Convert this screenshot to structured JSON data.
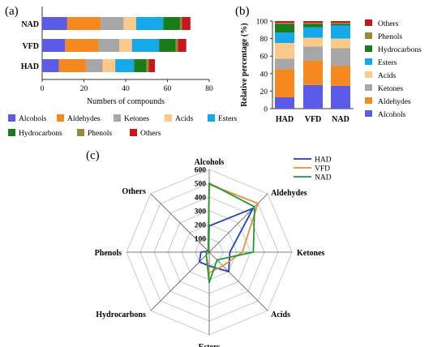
{
  "panel_labels": {
    "a": "(a)",
    "b": "(b)",
    "c": "(c)"
  },
  "colors": {
    "Alcohols": "#5b5be8",
    "Aldehydes": "#f5891f",
    "Ketones": "#a7a7a7",
    "Acids": "#fbc98a",
    "Esters": "#15a9ea",
    "Hydrocarbons": "#1a7b1a",
    "Phenols": "#968a3a",
    "Others": "#c8161d",
    "HAD_line": "#1c3fc8",
    "VFD_line": "#f08c3a",
    "NAD_line": "#1f9a2e"
  },
  "chart_data": [
    {
      "id": "a",
      "type": "bar",
      "orientation": "horizontal",
      "stacked": true,
      "categories": [
        "NAD",
        "VFD",
        "HAD"
      ],
      "series": [
        {
          "name": "Alcohols",
          "values": [
            12,
            11,
            8
          ]
        },
        {
          "name": "Aldehydes",
          "values": [
            16,
            16,
            13
          ]
        },
        {
          "name": "Ketones",
          "values": [
            11,
            10,
            8
          ]
        },
        {
          "name": "Acids",
          "values": [
            6,
            6,
            6
          ]
        },
        {
          "name": "Esters",
          "values": [
            13,
            13,
            9
          ]
        },
        {
          "name": "Hydrocarbons",
          "values": [
            8,
            8,
            6
          ]
        },
        {
          "name": "Phenols",
          "values": [
            1,
            1,
            1
          ]
        },
        {
          "name": "Others",
          "values": [
            4,
            4,
            3
          ]
        }
      ],
      "xlabel": "Numbers of compounds",
      "xlim": [
        0,
        80
      ],
      "xticks": [
        0,
        20,
        40,
        60,
        80
      ],
      "legend_placement": "bottom"
    },
    {
      "id": "b",
      "type": "bar",
      "stacked": true,
      "categories": [
        "HAD",
        "VFD",
        "NAD"
      ],
      "series": [
        {
          "name": "Alcohols",
          "values": [
            13,
            27,
            26
          ]
        },
        {
          "name": "Aldehydes",
          "values": [
            32,
            28,
            23
          ]
        },
        {
          "name": "Ketones",
          "values": [
            12,
            16,
            20
          ]
        },
        {
          "name": "Acids",
          "values": [
            18,
            10,
            11
          ]
        },
        {
          "name": "Esters",
          "values": [
            12,
            12,
            15
          ]
        },
        {
          "name": "Hydrocarbons",
          "values": [
            10,
            4,
            2
          ]
        },
        {
          "name": "Phenols",
          "values": [
            1,
            1,
            1
          ]
        },
        {
          "name": "Others",
          "values": [
            2,
            2,
            2
          ]
        }
      ],
      "ylabel": "Relative percentage (%)",
      "ylim": [
        0,
        100
      ],
      "yticks": [
        0,
        20,
        40,
        60,
        80,
        100
      ],
      "legend_order": [
        "Others",
        "Phenols",
        "Hydrocarbons",
        "Esters",
        "Acids",
        "Ketones",
        "Aldehydes",
        "Alcohols"
      ],
      "legend_placement": "right"
    },
    {
      "id": "c",
      "type": "radar",
      "axes": [
        "Alcohols",
        "Aldehydes",
        "Ketones",
        "Acids",
        "Esters",
        "Hydrocarbons",
        "Phenols",
        "Others"
      ],
      "rlim": [
        0,
        600
      ],
      "rticks": [
        100,
        200,
        300,
        400,
        500,
        600
      ],
      "series": [
        {
          "name": "HAD",
          "values": [
            190,
            450,
            150,
            200,
            100,
            100,
            60,
            10
          ]
        },
        {
          "name": "VFD",
          "values": [
            490,
            500,
            240,
            140,
            150,
            30,
            20,
            10
          ]
        },
        {
          "name": "NAD",
          "values": [
            500,
            465,
            320,
            80,
            220,
            30,
            20,
            10
          ]
        }
      ],
      "legend_placement": "top-right"
    }
  ]
}
